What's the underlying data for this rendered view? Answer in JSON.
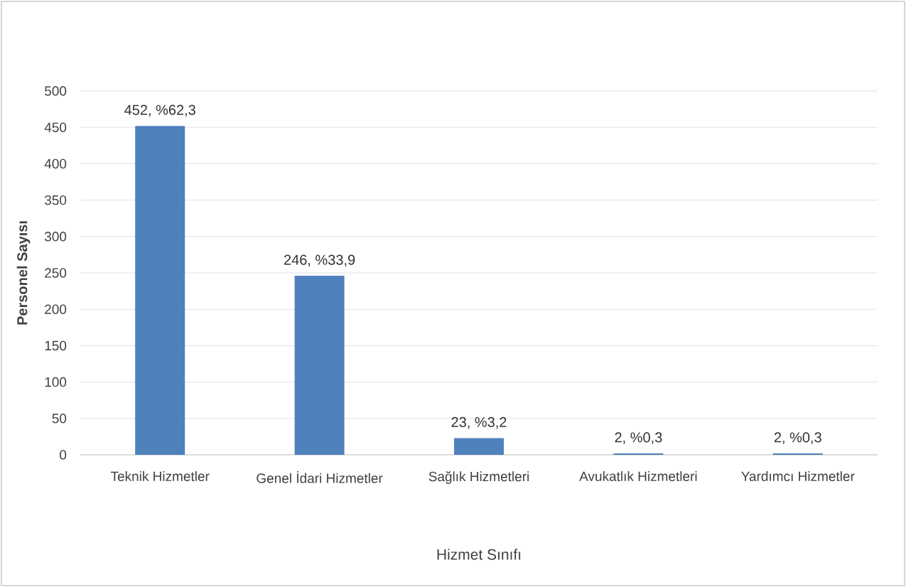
{
  "chart_data": {
    "type": "bar",
    "xlabel": "Hizmet Sınıfı",
    "ylabel": "Personel Sayısı",
    "categories": [
      "Teknik Hizmetler",
      "Genel İdari Hizmetler",
      "Sağlık Hizmetleri",
      "Avukatlık Hizmetleri",
      "Yardımcı Hizmetler"
    ],
    "values": [
      452,
      246,
      23,
      2,
      2
    ],
    "value_labels": [
      "452, %62,3",
      "246, %33,9",
      "23, %3,2",
      "2, %0,3",
      "2, %0,3"
    ],
    "color": "#4f81bd",
    "ylim": [
      0,
      500
    ],
    "yticks": [
      0,
      50,
      100,
      150,
      200,
      250,
      300,
      350,
      400,
      450,
      500
    ],
    "grid": "y"
  }
}
